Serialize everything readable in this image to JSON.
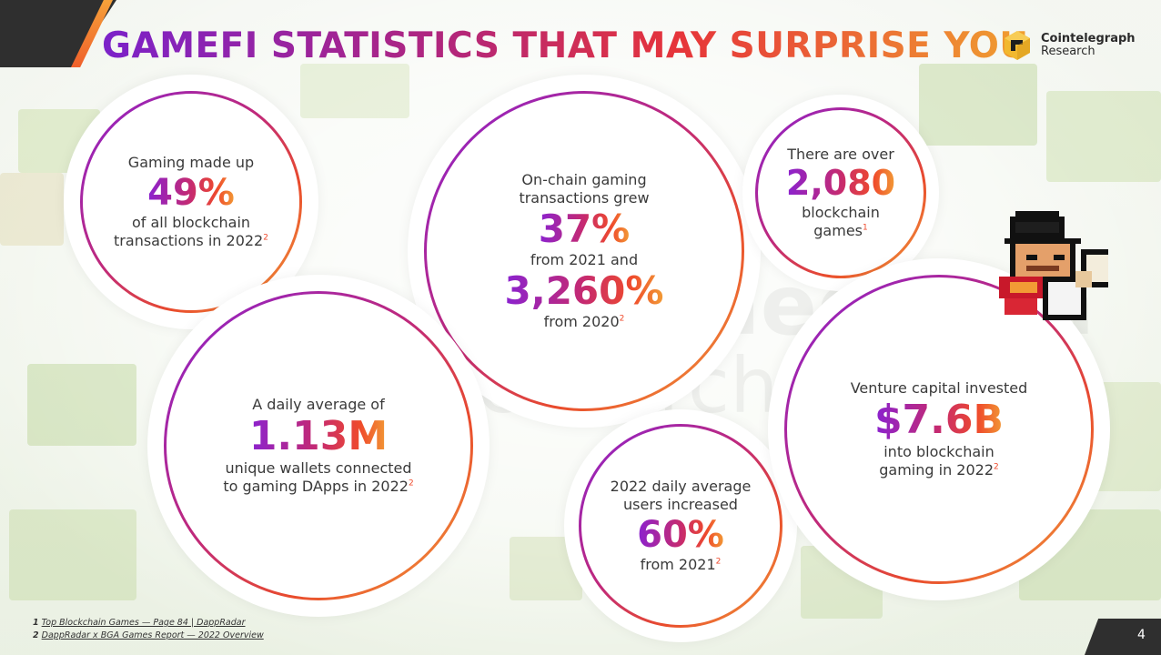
{
  "header": {
    "title": "GAMEFI STATISTICS THAT MAY SURPRISE YOU",
    "brand_name": "Cointelegraph",
    "brand_sub": "Research"
  },
  "watermark": {
    "line1": "Cointelegraph",
    "line2": "Research"
  },
  "stats": {
    "gaming_share": {
      "pre": "Gaming made up",
      "value": "49%",
      "post_line1": "of all blockchain",
      "post_line2": "transactions in 2022",
      "footnote": "2"
    },
    "onchain_growth": {
      "pre_line1": "On-chain gaming",
      "pre_line2": "transactions grew",
      "value1": "37%",
      "mid": "from 2021 and",
      "value2": "3,260%",
      "post": "from 2020",
      "footnote": "2"
    },
    "game_count": {
      "pre": "There are over",
      "value": "2,080",
      "post_line1": "blockchain",
      "post_line2": "games",
      "footnote": "1"
    },
    "daily_wallets": {
      "pre": "A daily average of",
      "value": "1.13M",
      "post_line1": "unique wallets connected",
      "post_line2": "to gaming DApps in 2022",
      "footnote": "2"
    },
    "daily_users": {
      "pre_line1": "2022 daily average",
      "pre_line2": "users increased",
      "value": "60%",
      "post": "from 2021",
      "footnote": "2"
    },
    "venture_capital": {
      "pre": "Venture capital invested",
      "value": "$7.6B",
      "post_line1": "into blockchain",
      "post_line2": "gaming in 2022",
      "footnote": "2"
    }
  },
  "footnotes": [
    {
      "num": "1",
      "text": "Top Blockchain Games — Page 84 | DappRadar"
    },
    {
      "num": "2",
      "text": "DappRadar x BGA Games Report — 2022 Overview"
    }
  ],
  "page_number": "4",
  "colors": {
    "purple": "#8a22d0",
    "magenta": "#c62a6f",
    "red": "#ef4a2c",
    "orange": "#f29b35",
    "dark": "#2f2f2f"
  }
}
